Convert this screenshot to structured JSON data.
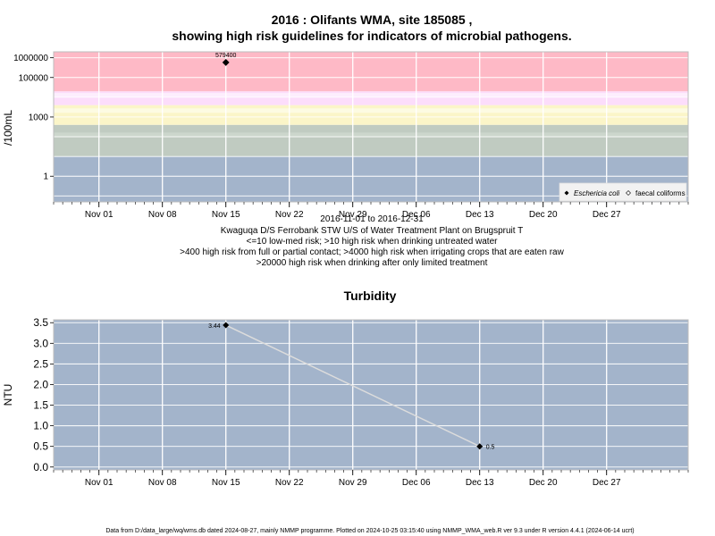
{
  "chart_data": [
    {
      "type": "scatter",
      "title": "2016 : Olifants WMA, site 185085 ,",
      "subtitle": "showing high risk guidelines for indicators of microbial pathogens.",
      "ylabel": "/100mL",
      "yscale": "log",
      "ylim": [
        0.05,
        2000000
      ],
      "yticks": [
        {
          "value": 1000000,
          "label": "1000000"
        },
        {
          "value": 100000,
          "label": "100000"
        },
        {
          "value": 1000,
          "label": "1000"
        },
        {
          "value": 1,
          "label": "1"
        }
      ],
      "xlim": [
        "2016-10-27",
        "2017-01-05"
      ],
      "xticks": [
        "Nov 01",
        "Nov 08",
        "Nov 15",
        "Nov 22",
        "Nov 29",
        "Dec 06",
        "Dec 13",
        "Dec 20",
        "Dec 27"
      ],
      "xtick_dates": [
        "2016-11-01",
        "2016-11-08",
        "2016-11-15",
        "2016-11-22",
        "2016-11-29",
        "2016-12-06",
        "2016-12-13",
        "2016-12-20",
        "2016-12-27"
      ],
      "grid": true,
      "risk_bands": [
        {
          "from": 0.05,
          "to": 10,
          "color": "#a3b4cb"
        },
        {
          "from": 10,
          "to": 400,
          "color": "#c0cbc1"
        },
        {
          "from": 400,
          "to": 4000,
          "color": "#fbf5c8"
        },
        {
          "from": 4000,
          "to": 20000,
          "color": "#fcddfb"
        },
        {
          "from": 20000,
          "to": 2000000,
          "color": "#feb9c6"
        }
      ],
      "series": [
        {
          "name": "Eschericia coli",
          "marker": "filled-diamond",
          "points": [
            {
              "x": "2016-11-15",
              "y": 579400,
              "label": "579400"
            }
          ]
        },
        {
          "name": "faecal coliforms",
          "marker": "open-diamond",
          "points": []
        }
      ],
      "legend_position": "bottom-right",
      "caption": [
        "2016-11-01 to 2016-12-31",
        "Kwaguqa D/S Ferrobank STW U/S of Water Treatment Plant on Brugspruit T",
        "<=10 low-med risk; >10 high risk when drinking untreated water",
        ">400 high risk from full or partial contact; >4000 high risk when irrigating crops that are eaten raw",
        ">20000 high risk when drinking after only limited treatment"
      ]
    },
    {
      "type": "line",
      "title": "Turbidity",
      "ylabel": "NTU",
      "ylim": [
        -0.07,
        3.57
      ],
      "yticks": [
        "0.0",
        "0.5",
        "1.0",
        "1.5",
        "2.0",
        "2.5",
        "3.0",
        "3.5"
      ],
      "ytick_values": [
        0,
        0.5,
        1,
        1.5,
        2,
        2.5,
        3,
        3.5
      ],
      "xlim": [
        "2016-10-27",
        "2017-01-05"
      ],
      "xticks": [
        "Nov 01",
        "Nov 08",
        "Nov 15",
        "Nov 22",
        "Nov 29",
        "Dec 06",
        "Dec 13",
        "Dec 20",
        "Dec 27"
      ],
      "xtick_dates": [
        "2016-11-01",
        "2016-11-08",
        "2016-11-15",
        "2016-11-22",
        "2016-11-29",
        "2016-12-06",
        "2016-12-13",
        "2016-12-20",
        "2016-12-27"
      ],
      "grid": true,
      "background_color": "#a3b4cb",
      "line_color": "#dcdcdc",
      "series": [
        {
          "points": [
            {
              "x": "2016-11-15",
              "y": 3.44,
              "label": "3.44"
            },
            {
              "x": "2016-12-13",
              "y": 0.5,
              "label": "0.5"
            }
          ]
        }
      ]
    }
  ],
  "footer": "Data from D:/data_large/wq/wms.db dated 2024-08-27, mainly NMMP programme. Plotted on 2024-10-25 03:15:40 using NMMP_WMA_web.R ver 9.3 under R version 4.4.1 (2024-06-14 ucrt)"
}
